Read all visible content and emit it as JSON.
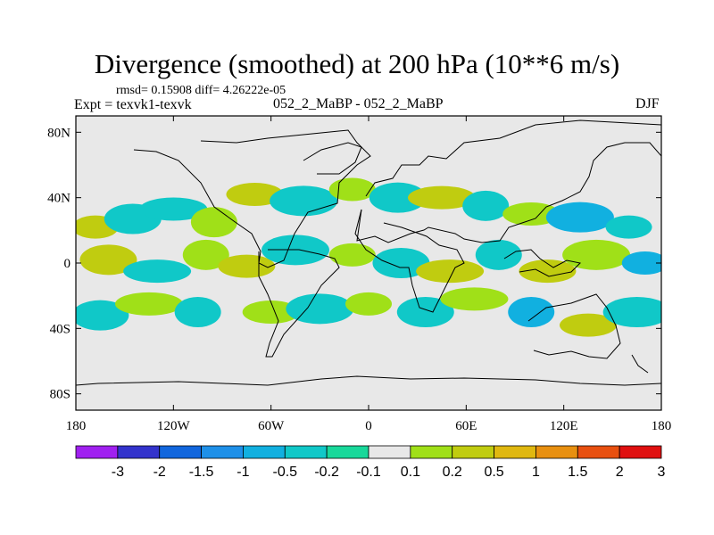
{
  "chart_data": {
    "type": "heatmap",
    "title": "Divergence (smoothed) at 200 hPa (10**6 m/s)",
    "subtitle_stats": "rmsd= 0.15908 diff= 4.26222e-05",
    "experiment": "Expt = texvk1-texvk",
    "case": "052_2_MaBP - 052_2_MaBP",
    "season": "DJF",
    "x_ticks": [
      "180",
      "120W",
      "60W",
      "0",
      "60E",
      "120E",
      "180"
    ],
    "x_values": [
      -180,
      -120,
      -60,
      0,
      60,
      120,
      180
    ],
    "y_ticks": [
      "80N",
      "40N",
      "0",
      "40S",
      "80S"
    ],
    "y_values": [
      80,
      40,
      0,
      -40,
      -80
    ],
    "xlim": [
      -180,
      180
    ],
    "ylim": [
      -90,
      90
    ],
    "colorbar_labels": [
      "-3",
      "-2",
      "-1.5",
      "-1",
      "-0.5",
      "-0.2",
      "-0.1",
      "0.1",
      "0.2",
      "0.5",
      "1",
      "1.5",
      "2",
      "3"
    ],
    "colorbar_colors": [
      "#a020f0",
      "#3333cc",
      "#1166dd",
      "#1e90e8",
      "#11b0e0",
      "#10c8c8",
      "#18d89a",
      "#e8e8e8",
      "#a0e018",
      "#c0cc10",
      "#e0b810",
      "#e89010",
      "#e85010",
      "#e01010"
    ],
    "features": [
      {
        "lon": -168,
        "lat": 22,
        "value": 0.5
      },
      {
        "lon": -145,
        "lat": 27,
        "value": -0.2
      },
      {
        "lon": -120,
        "lat": 33,
        "value": -0.2
      },
      {
        "lon": -95,
        "lat": 25,
        "value": 0.2
      },
      {
        "lon": -70,
        "lat": 42,
        "value": 0.5
      },
      {
        "lon": -40,
        "lat": 38,
        "value": -0.2
      },
      {
        "lon": -10,
        "lat": 45,
        "value": 0.2
      },
      {
        "lon": 18,
        "lat": 40,
        "value": -0.2
      },
      {
        "lon": 45,
        "lat": 40,
        "value": 0.5
      },
      {
        "lon": 72,
        "lat": 35,
        "value": -0.2
      },
      {
        "lon": 100,
        "lat": 30,
        "value": 0.2
      },
      {
        "lon": 130,
        "lat": 28,
        "value": -0.5
      },
      {
        "lon": 160,
        "lat": 22,
        "value": -0.2
      },
      {
        "lon": -160,
        "lat": 2,
        "value": 0.5
      },
      {
        "lon": -130,
        "lat": -5,
        "value": -0.2
      },
      {
        "lon": -100,
        "lat": 5,
        "value": 0.2
      },
      {
        "lon": -75,
        "lat": -2,
        "value": 0.5
      },
      {
        "lon": -45,
        "lat": 8,
        "value": -0.2
      },
      {
        "lon": -10,
        "lat": 5,
        "value": 0.2
      },
      {
        "lon": 20,
        "lat": 0,
        "value": -0.2
      },
      {
        "lon": 50,
        "lat": -5,
        "value": 0.5
      },
      {
        "lon": 80,
        "lat": 5,
        "value": -0.2
      },
      {
        "lon": 110,
        "lat": -5,
        "value": 0.5
      },
      {
        "lon": 140,
        "lat": 5,
        "value": 0.2
      },
      {
        "lon": 170,
        "lat": 0,
        "value": -0.5
      },
      {
        "lon": -165,
        "lat": -32,
        "value": -0.2
      },
      {
        "lon": -135,
        "lat": -25,
        "value": 0.2
      },
      {
        "lon": -105,
        "lat": -30,
        "value": -0.2
      },
      {
        "lon": -60,
        "lat": -30,
        "value": 0.2
      },
      {
        "lon": -30,
        "lat": -28,
        "value": -0.2
      },
      {
        "lon": 0,
        "lat": -25,
        "value": 0.2
      },
      {
        "lon": 35,
        "lat": -30,
        "value": -0.2
      },
      {
        "lon": 65,
        "lat": -22,
        "value": 0.2
      },
      {
        "lon": 100,
        "lat": -30,
        "value": -0.5
      },
      {
        "lon": 135,
        "lat": -38,
        "value": 0.5
      },
      {
        "lon": 165,
        "lat": -30,
        "value": -0.2
      }
    ]
  }
}
